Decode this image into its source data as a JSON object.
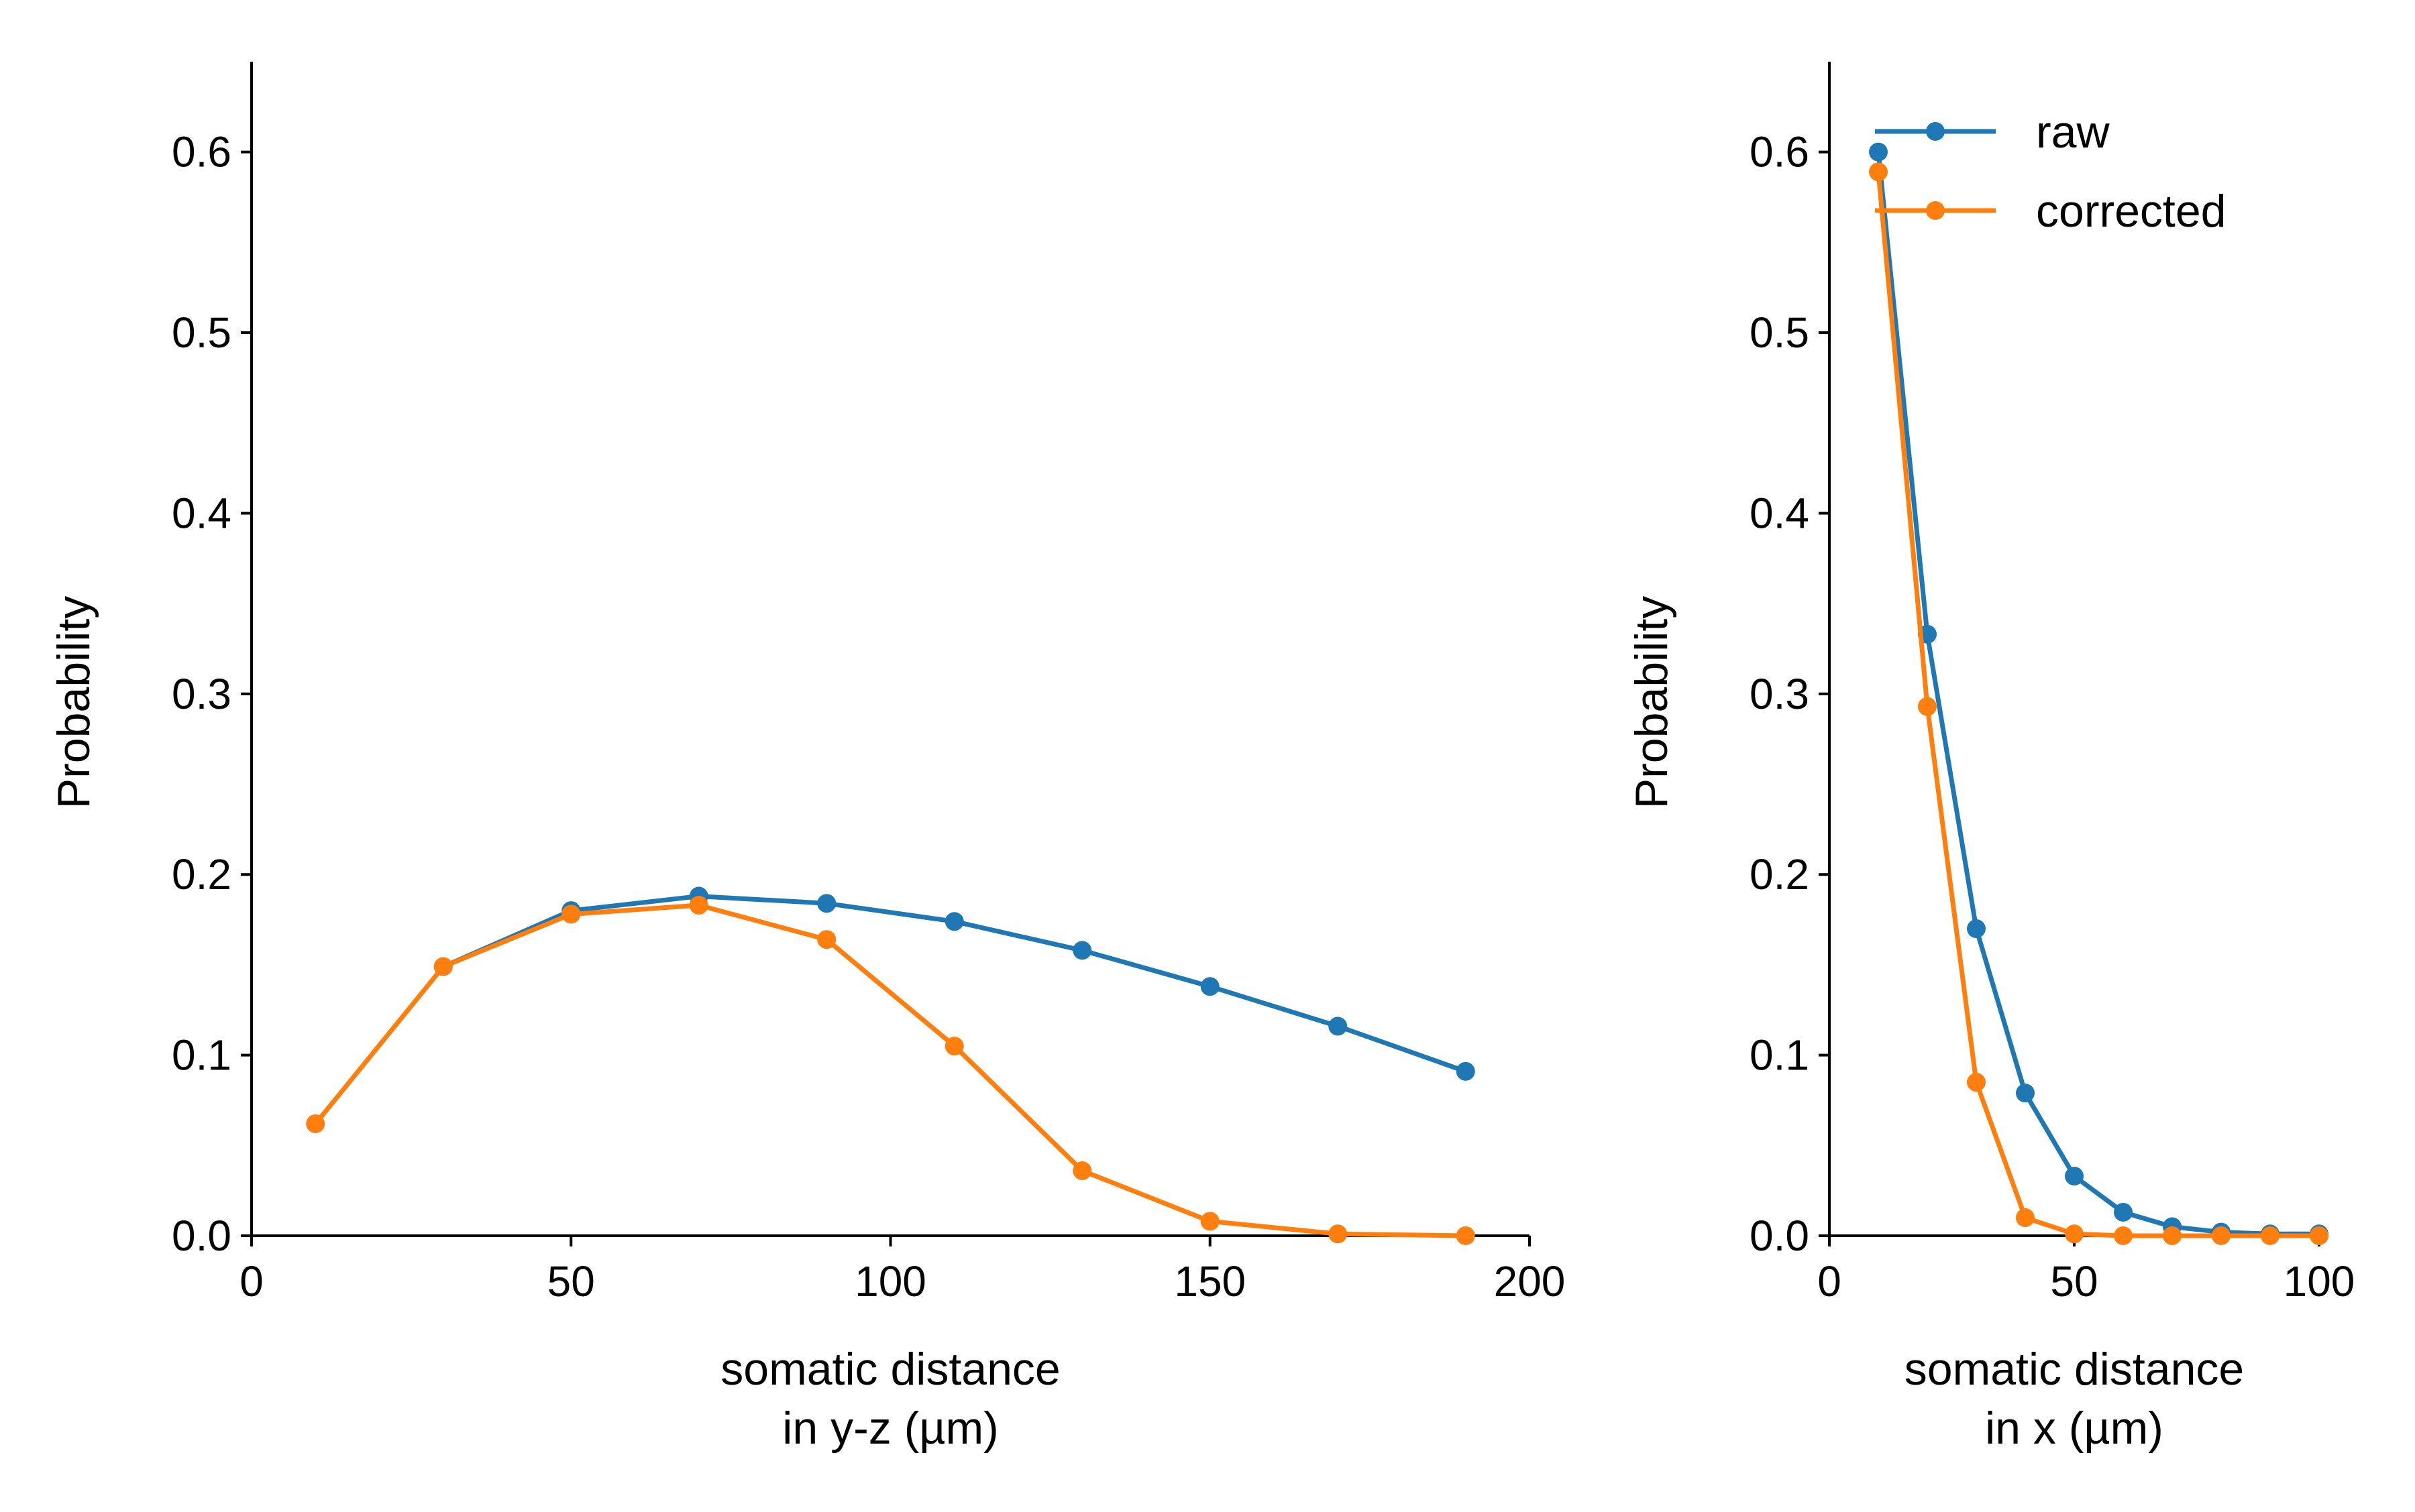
{
  "colors": {
    "raw": "#1f77b4",
    "corrected": "#ff7f0e",
    "axis": "#000000"
  },
  "chart_data": [
    {
      "type": "line",
      "xlabel": [
        "somatic distance",
        "in y-z (µm)"
      ],
      "ylabel": "Probability",
      "xlim": [
        0,
        200
      ],
      "ylim": [
        0,
        0.65
      ],
      "xticks": [
        0,
        50,
        100,
        150,
        200
      ],
      "xtick_labels": [
        "0",
        "50",
        "100",
        "150",
        "200"
      ],
      "yticks": [
        0.0,
        0.1,
        0.2,
        0.3,
        0.4,
        0.5,
        0.6
      ],
      "ytick_labels": [
        "0.0",
        "0.1",
        "0.2",
        "0.3",
        "0.4",
        "0.5",
        "0.6"
      ],
      "grid": false,
      "series": [
        {
          "name": "raw",
          "color": "#1f77b4",
          "x": [
            30,
            50,
            70,
            90,
            110,
            130,
            150,
            170,
            190
          ],
          "y": [
            0.149,
            0.18,
            0.188,
            0.184,
            0.174,
            0.158,
            0.138,
            0.116,
            0.091
          ]
        },
        {
          "name": "corrected",
          "color": "#ff7f0e",
          "x": [
            10,
            30,
            50,
            70,
            90,
            110,
            130,
            150,
            170,
            190
          ],
          "y": [
            0.062,
            0.149,
            0.178,
            0.183,
            0.164,
            0.105,
            0.036,
            0.008,
            0.001,
            0.0
          ]
        }
      ]
    },
    {
      "type": "line",
      "xlabel": [
        "somatic distance",
        "in x (µm)"
      ],
      "ylabel": "Probability",
      "xlim": [
        0,
        100
      ],
      "ylim": [
        0,
        0.65
      ],
      "xticks": [
        0,
        50,
        100
      ],
      "xtick_labels": [
        "0",
        "50",
        "100"
      ],
      "yticks": [
        0.0,
        0.1,
        0.2,
        0.3,
        0.4,
        0.5,
        0.6
      ],
      "ytick_labels": [
        "0.0",
        "0.1",
        "0.2",
        "0.3",
        "0.4",
        "0.5",
        "0.6"
      ],
      "grid": false,
      "legend": {
        "position": "top-left",
        "entries": [
          "raw",
          "corrected"
        ]
      },
      "series": [
        {
          "name": "raw",
          "color": "#1f77b4",
          "x": [
            10,
            20,
            30,
            40,
            50,
            60,
            70,
            80,
            90,
            100
          ],
          "y": [
            0.6,
            0.333,
            0.17,
            0.079,
            0.033,
            0.013,
            0.005,
            0.002,
            0.001,
            0.001
          ]
        },
        {
          "name": "corrected",
          "color": "#ff7f0e",
          "x": [
            10,
            20,
            30,
            40,
            50,
            60,
            70,
            80,
            90,
            100
          ],
          "y": [
            0.589,
            0.293,
            0.085,
            0.01,
            0.001,
            0.0,
            0.0,
            0.0,
            0.0,
            0.0
          ]
        }
      ]
    }
  ]
}
